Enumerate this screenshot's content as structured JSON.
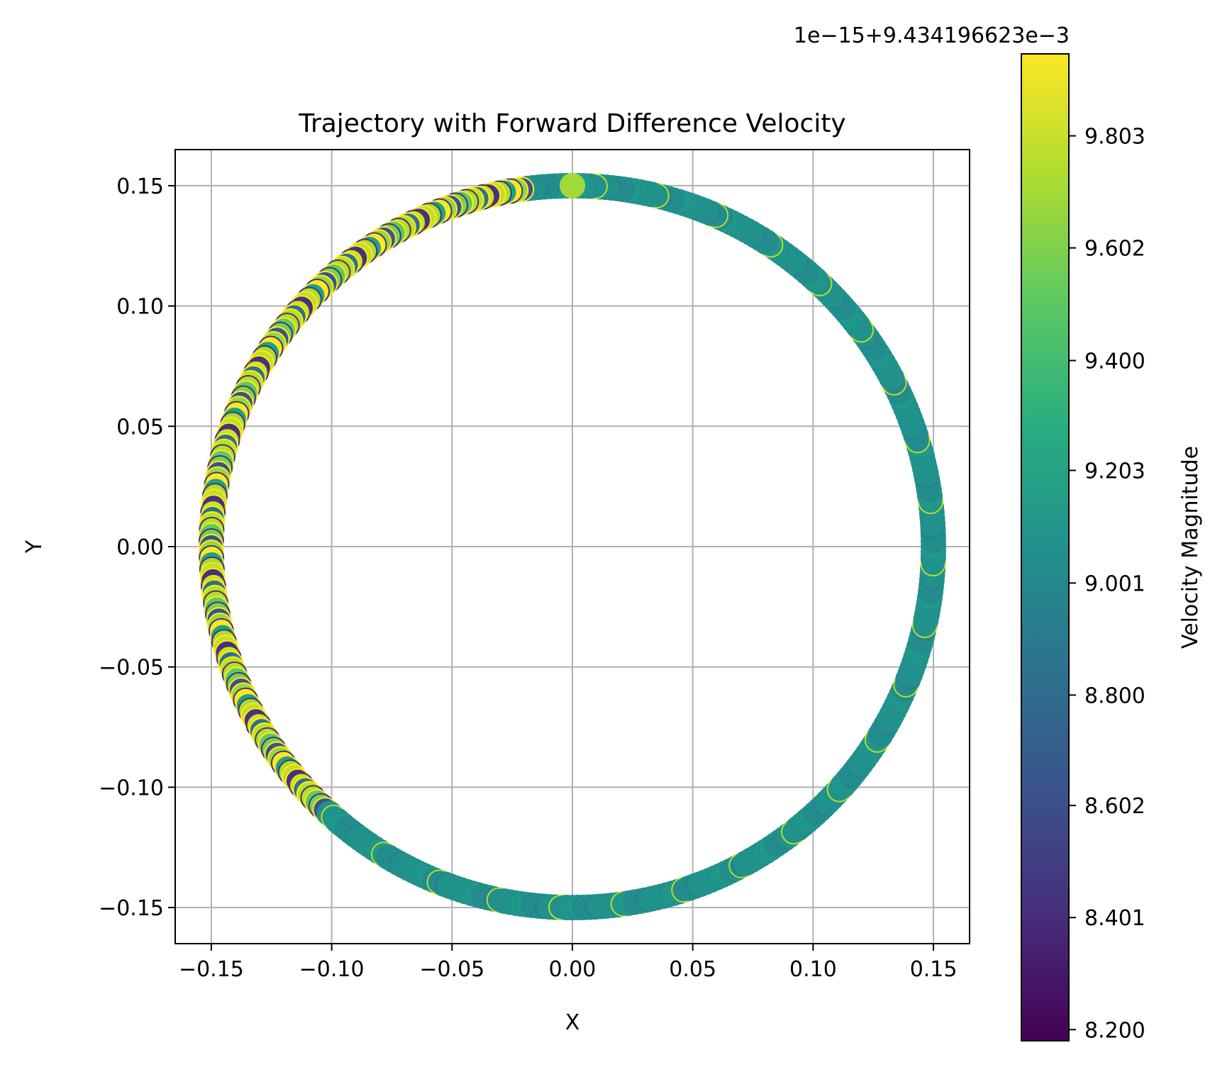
{
  "chart_data": {
    "type": "scatter",
    "title": "Trajectory with Forward Difference Velocity",
    "xlabel": "X",
    "ylabel": "Y",
    "xlim": [
      -0.165,
      0.165
    ],
    "ylim": [
      -0.165,
      0.165
    ],
    "grid": true,
    "x_ticks": [
      -0.15,
      -0.1,
      -0.05,
      0.0,
      0.05,
      0.1,
      0.15
    ],
    "x_tick_labels": [
      "−0.15",
      "−0.10",
      "−0.05",
      "0.00",
      "0.05",
      "0.10",
      "0.15"
    ],
    "y_ticks": [
      0.15,
      0.1,
      0.05,
      0.0,
      -0.05,
      -0.1,
      -0.15
    ],
    "y_tick_labels": [
      "0.15",
      "0.10",
      "0.05",
      "0.00",
      "−0.05",
      "−0.10",
      "−0.15"
    ],
    "series": {
      "shape": "circle",
      "radius": 0.15,
      "center": [
        0.0,
        0.0
      ],
      "start_angle_deg": 90,
      "direction": "counterclockwise",
      "point_count": 400,
      "color_mapping": "viridis"
    },
    "colorbar": {
      "label": "Velocity Magnitude",
      "colormap": "viridis",
      "offset_text": "1e−15+9.434196623e−3",
      "range": [
        8.18,
        9.95
      ],
      "ticks": [
        8.2,
        8.401,
        8.602,
        8.8,
        9.001,
        9.203,
        9.4,
        9.602,
        9.803
      ],
      "tick_labels": [
        "8.200",
        "8.401",
        "8.602",
        "8.800",
        "9.001",
        "9.203",
        "9.400",
        "9.602",
        "9.803"
      ]
    }
  }
}
